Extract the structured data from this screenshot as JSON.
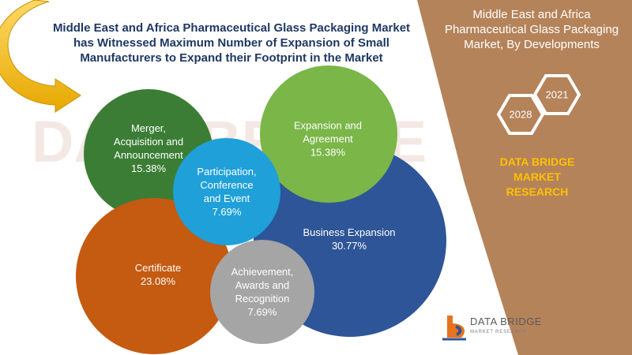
{
  "headline": {
    "lines": [
      "Middle East and Africa Pharmaceutical Glass Packaging Market",
      "has Witnessed Maximum Number of Expansion of Small",
      "Manufacturers to Expand their Footprint in the Market"
    ]
  },
  "side_panel": {
    "title_lines": [
      "Middle East and Africa",
      "Pharmaceutical Glass Packaging",
      "Market, By Developments"
    ],
    "years": [
      "2021",
      "2028"
    ],
    "brand_lines": [
      "DATA BRIDGE MARKET",
      "RESEARCH"
    ],
    "background_color": "#b5835a"
  },
  "watermark": {
    "text": "DATA BRIDGE"
  },
  "segments": [
    {
      "label_lines": [
        "Merger,",
        "Acquisition and",
        "Announcement"
      ],
      "value": "15.38%",
      "color": "#3b7d35"
    },
    {
      "label_lines": [
        "Expansion and",
        "Agreement"
      ],
      "value": "15.38%",
      "color": "#7ab648"
    },
    {
      "label_lines": [
        "Participation,",
        "Conference",
        "and Event"
      ],
      "value": "7.69%",
      "color": "#1fa0d8"
    },
    {
      "label_lines": [
        "Business Expansion"
      ],
      "value": "30.77%",
      "color": "#2e5597"
    },
    {
      "label_lines": [
        "Certificate"
      ],
      "value": "23.08%",
      "color": "#c55a11"
    },
    {
      "label_lines": [
        "Achievement,",
        "Awards and",
        "Recognition"
      ],
      "value": "7.69%",
      "color": "#a5a5a5"
    }
  ],
  "logo": {
    "name": "DATA BRIDGE",
    "tagline": "MARKET RESEARCH"
  }
}
